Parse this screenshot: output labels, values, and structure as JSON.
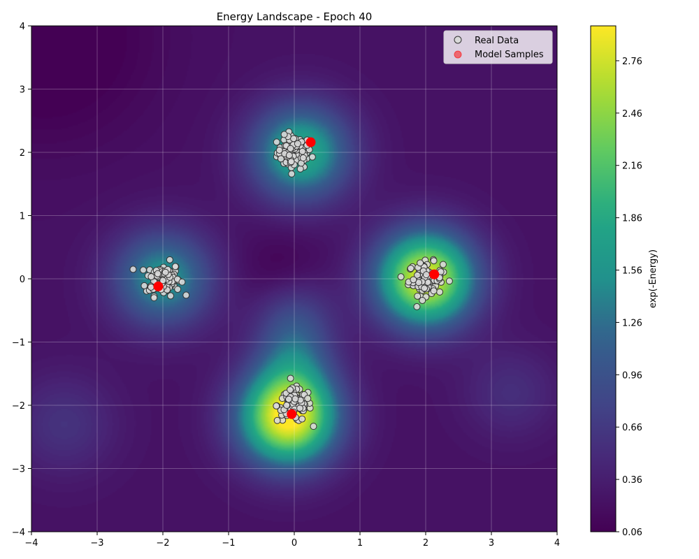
{
  "chart_data": {
    "type": "scatter",
    "title": "Energy Landscape - Epoch 40",
    "xlabel": "",
    "ylabel": "",
    "xlim": [
      -4,
      4
    ],
    "ylim": [
      -4,
      4
    ],
    "x_ticks": [
      -4,
      -3,
      -2,
      -1,
      0,
      1,
      2,
      3,
      4
    ],
    "y_ticks": [
      -4,
      -3,
      -2,
      -1,
      0,
      1,
      2,
      3,
      4
    ],
    "grid": true,
    "legend_position": "top-right",
    "background": {
      "type": "heatmap",
      "colormap": "viridis",
      "peaks": [
        {
          "x": 2.0,
          "y": 0.0,
          "value": 2.9
        },
        {
          "x": -0.1,
          "y": -2.2,
          "value": 2.9
        },
        {
          "x": 0.1,
          "y": 2.0,
          "value": 1.9
        },
        {
          "x": -2.0,
          "y": 0.0,
          "value": 1.6
        }
      ],
      "minimum": {
        "x": -0.1,
        "y": 0.1,
        "value": 0.3
      }
    },
    "colorbar": {
      "label": "exp(-Energy)",
      "range": [
        0.06,
        2.96
      ],
      "ticks": [
        0.06,
        0.36,
        0.66,
        0.96,
        1.26,
        1.56,
        1.86,
        2.16,
        2.46,
        2.76
      ]
    },
    "series": [
      {
        "name": "Real Data",
        "marker_color": "#d9d9d9",
        "edge_color": "#333333",
        "clusters": [
          {
            "center": [
              0.0,
              2.0
            ],
            "spread": 0.13,
            "count": 100
          },
          {
            "center": [
              -2.0,
              0.0
            ],
            "spread": 0.13,
            "count": 100
          },
          {
            "center": [
              2.0,
              0.0
            ],
            "spread": 0.13,
            "count": 100
          },
          {
            "center": [
              0.0,
              -2.0
            ],
            "spread": 0.13,
            "count": 100
          }
        ]
      },
      {
        "name": "Model Samples",
        "marker_color": "#ff0000",
        "points": [
          {
            "x": 0.25,
            "y": 2.16
          },
          {
            "x": -2.07,
            "y": -0.12
          },
          {
            "x": 2.13,
            "y": 0.07
          },
          {
            "x": -0.04,
            "y": -2.14
          }
        ]
      }
    ]
  }
}
